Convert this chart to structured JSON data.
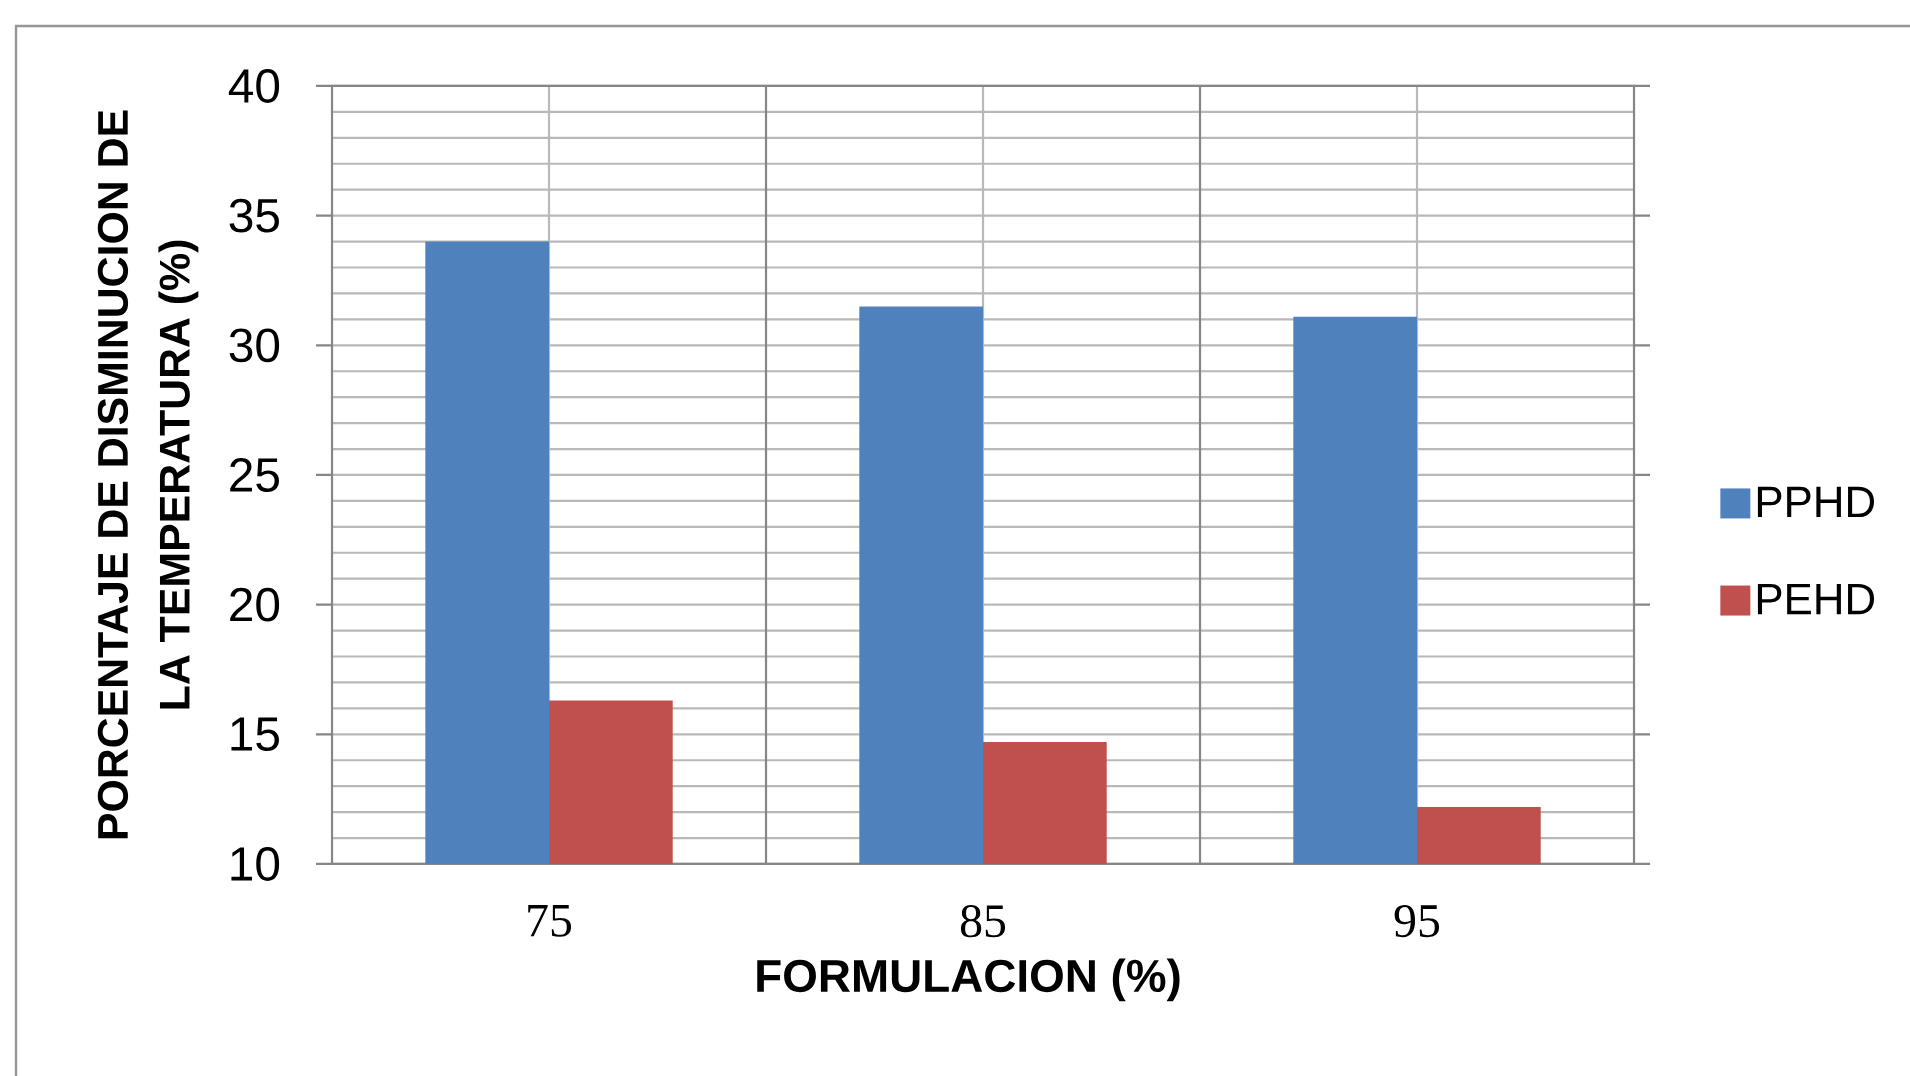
{
  "chart_data": {
    "type": "bar",
    "xlabel": "FORMULACION (%)",
    "ylabel": "PORCENTAJE DE DISMINUCION DE LA TEMPERATURA (%)",
    "categories": [
      "75",
      "85",
      "95"
    ],
    "series": [
      {
        "name": "PPHD",
        "color": "#4f81bd",
        "values": [
          34.0,
          31.5,
          31.1
        ]
      },
      {
        "name": "PEHD",
        "color": "#c0504d",
        "values": [
          16.3,
          14.7,
          12.2
        ]
      }
    ],
    "ylim": [
      10,
      40
    ],
    "yticks": [
      10,
      15,
      20,
      25,
      30,
      35,
      40
    ],
    "grid": true,
    "legend": "right"
  }
}
